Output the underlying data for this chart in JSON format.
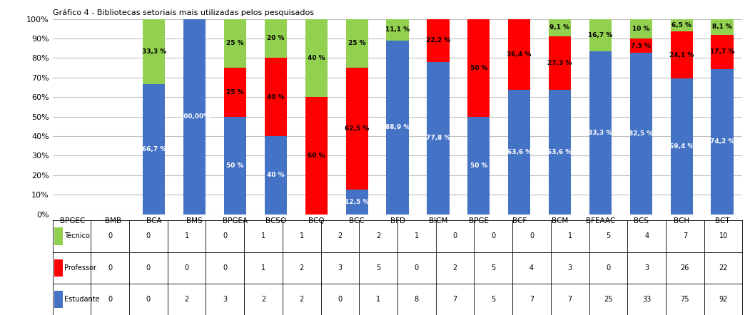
{
  "categories": [
    "BPGEC",
    "BMB",
    "BCA",
    "BMS",
    "BPGEA",
    "BCSO",
    "BCQ",
    "BCC",
    "BFD",
    "BICM",
    "BPGE",
    "BCF",
    "BCM",
    "BFEAAC",
    "BCS",
    "BCH",
    "BCT"
  ],
  "tecnico": [
    0,
    0,
    1,
    0,
    1,
    1,
    2,
    2,
    1,
    0,
    0,
    0,
    1,
    5,
    4,
    7,
    10
  ],
  "professor": [
    0,
    0,
    0,
    0,
    1,
    2,
    3,
    5,
    0,
    2,
    5,
    4,
    3,
    0,
    3,
    26,
    22
  ],
  "estudante": [
    0,
    0,
    2,
    3,
    2,
    2,
    0,
    1,
    8,
    7,
    5,
    7,
    7,
    25,
    33,
    75,
    92
  ],
  "color_tecnico": "#92d050",
  "color_professor": "#ff0000",
  "color_estudante": "#4472c4",
  "title": "Gráfico 4 - Bibliotecas setoriais mais utilizadas pelos pesquisados",
  "legend_tecnico": "Técnico",
  "legend_professor": "Professor",
  "legend_estudante": "Estudante",
  "background_color": "#ffffff",
  "grid_color": "#c0c0c0"
}
